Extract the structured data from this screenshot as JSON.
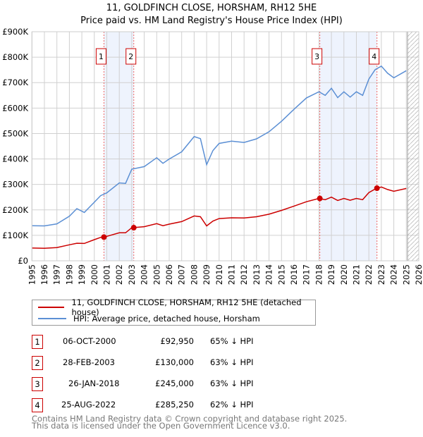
{
  "chart_data": {
    "type": "line",
    "title": "11, GOLDFINCH CLOSE, HORSHAM, RH12 5HE",
    "subtitle": "Price paid vs. HM Land Registry's House Price Index (HPI)",
    "xlim": [
      1995,
      2026
    ],
    "ylim": [
      0,
      900000
    ],
    "x_ticks": [
      "1995",
      "1996",
      "1997",
      "1998",
      "1999",
      "2000",
      "2001",
      "2002",
      "2003",
      "2004",
      "2005",
      "2006",
      "2007",
      "2008",
      "2009",
      "2010",
      "2011",
      "2012",
      "2013",
      "2014",
      "2015",
      "2016",
      "2017",
      "2018",
      "2019",
      "2020",
      "2021",
      "2022",
      "2023",
      "2024",
      "2025",
      "2026"
    ],
    "y_ticks": [
      "£0",
      "£100K",
      "£200K",
      "£300K",
      "£400K",
      "£500K",
      "£600K",
      "£700K",
      "£800K",
      "£900K"
    ],
    "grid": true,
    "forecast_hatch_from": 2025.1,
    "x": [
      1995,
      1996,
      1997,
      1998,
      1998.6,
      1999.2,
      2000,
      2000.5,
      2001,
      2002,
      2002.5,
      2003,
      2004,
      2005,
      2005.5,
      2006,
      2007,
      2008,
      2008.5,
      2009,
      2009.5,
      2010,
      2011,
      2012,
      2013,
      2014,
      2015,
      2016,
      2017,
      2018,
      2018.5,
      2019,
      2019.5,
      2020,
      2020.5,
      2021,
      2021.5,
      2022,
      2022.5,
      2023,
      2023.5,
      2024,
      2025
    ],
    "series": [
      {
        "name": "11, GOLDFINCH CLOSE, HORSHAM, RH12 5HE (detached house)",
        "color": "#cc0000",
        "values": [
          50,
          49,
          52,
          63,
          69,
          68,
          83,
          92,
          96,
          110,
          110,
          130,
          134,
          146,
          138,
          144,
          154,
          176,
          173,
          137,
          156,
          166,
          169,
          168,
          173,
          183,
          198,
          215,
          232,
          245,
          240,
          250,
          237,
          245,
          238,
          245,
          240,
          268,
          282,
          290,
          280,
          273,
          284
        ]
      },
      {
        "name": "HPI: Average price, detached house, Horsham",
        "color": "#5b8fd4",
        "values": [
          138,
          137,
          145,
          175,
          205,
          190,
          230,
          256,
          267,
          306,
          304,
          360,
          370,
          405,
          383,
          400,
          428,
          488,
          480,
          378,
          433,
          461,
          470,
          465,
          479,
          507,
          548,
          595,
          640,
          664,
          650,
          678,
          641,
          664,
          643,
          664,
          650,
          714,
          751,
          765,
          737,
          719,
          747
        ]
      }
    ],
    "value_unit": "thousand GBP",
    "sales": [
      {
        "n": "1",
        "x": 2000.77,
        "price": 92.95,
        "date": "06-OCT-2000",
        "price_label": "£92,950",
        "hpi": "65% ↓ HPI"
      },
      {
        "n": "2",
        "x": 2003.16,
        "price": 130,
        "date": "28-FEB-2003",
        "price_label": "£130,000",
        "hpi": "63% ↓ HPI"
      },
      {
        "n": "3",
        "x": 2018.07,
        "price": 245,
        "date": "26-JAN-2018",
        "price_label": "£245,000",
        "hpi": "63% ↓ HPI"
      },
      {
        "n": "4",
        "x": 2022.65,
        "price": 285.25,
        "date": "25-AUG-2022",
        "price_label": "£285,250",
        "hpi": "62% ↓ HPI"
      }
    ]
  },
  "legend": {
    "property": "11, GOLDFINCH CLOSE, HORSHAM, RH12 5HE (detached house)",
    "hpi": "HPI: Average price, detached house, Horsham"
  },
  "footer": {
    "line1": "Contains HM Land Registry data © Crown copyright and database right 2025.",
    "line2": "This data is licensed under the Open Government Licence v3.0."
  }
}
